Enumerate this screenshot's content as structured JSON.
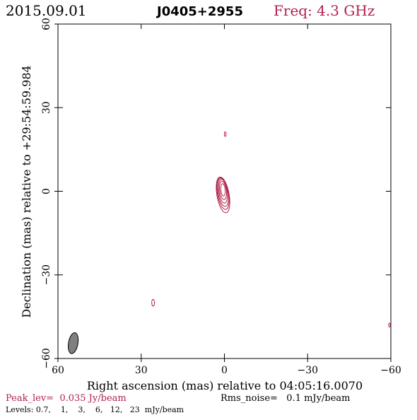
{
  "header": {
    "date": "2015.09.01",
    "source": "J0405+2955",
    "freq": "Freq: 4.3 GHz"
  },
  "colors": {
    "contour": "#b0204a",
    "frame": "#000000",
    "beam_fill": "#808080"
  },
  "chart_data": {
    "type": "contour",
    "title": "J0405+2955",
    "xlabel": "Right ascension (mas) relative to 04:05:16.0070",
    "ylabel": "Declination (mas) relative to +29:54:59.984",
    "xlim": [
      60,
      -60
    ],
    "ylim": [
      -60,
      60
    ],
    "xticks": [
      60,
      30,
      0,
      -30,
      -60
    ],
    "yticks": [
      -60,
      -30,
      0,
      30,
      60
    ],
    "xtick_labels": [
      "60",
      "30",
      "0",
      "−30",
      "−60"
    ],
    "ytick_labels": [
      "−60",
      "−30",
      "0",
      "30",
      "60"
    ],
    "contour_levels_mJy": [
      0.7,
      1,
      3,
      6,
      12,
      23
    ],
    "peak_Jy_per_beam": 0.035,
    "rms_noise_mJy_per_beam": 0.1,
    "components": [
      {
        "ra": 0.5,
        "dec": 0.5,
        "contours": [
          {
            "semi_ra": 2.2,
            "semi_dec": 6.5,
            "angle": 10,
            "dy": -1.8
          },
          {
            "semi_ra": 2.0,
            "semi_dec": 5.8,
            "angle": 10,
            "dy": -1.3
          },
          {
            "semi_ra": 1.8,
            "semi_dec": 5.1,
            "angle": 10,
            "dy": -0.9
          },
          {
            "semi_ra": 1.5,
            "semi_dec": 4.3,
            "angle": 8,
            "dy": -0.5
          },
          {
            "semi_ra": 1.2,
            "semi_dec": 3.3,
            "angle": 8,
            "dy": -0.2
          },
          {
            "semi_ra": 0.8,
            "semi_dec": 2.2,
            "angle": 5,
            "dy": 0
          }
        ]
      },
      {
        "ra": -0.3,
        "dec": 20.5,
        "contours": [
          {
            "semi_ra": 0.3,
            "semi_dec": 0.8,
            "angle": 0,
            "dy": 0
          }
        ]
      },
      {
        "ra": 25.7,
        "dec": -40.0,
        "contours": [
          {
            "semi_ra": 0.5,
            "semi_dec": 1.2,
            "angle": 0,
            "dy": 0
          }
        ]
      },
      {
        "ra": -59.5,
        "dec": -48.0,
        "contours": [
          {
            "semi_ra": 0.3,
            "semi_dec": 0.7,
            "angle": 0,
            "dy": 0
          }
        ]
      }
    ],
    "beam": {
      "ra": 54.5,
      "dec": -54.5,
      "major_mas": 7.6,
      "minor_mas": 3.4,
      "pa_deg": -10
    }
  },
  "footer": {
    "peak": "Peak_lev=  0.035 Jy/beam",
    "rms": "Rms_noise=   0.1 mJy/beam",
    "levels": "Levels: 0.7,    1,    3,    6,   12,   23  mJy/beam"
  }
}
